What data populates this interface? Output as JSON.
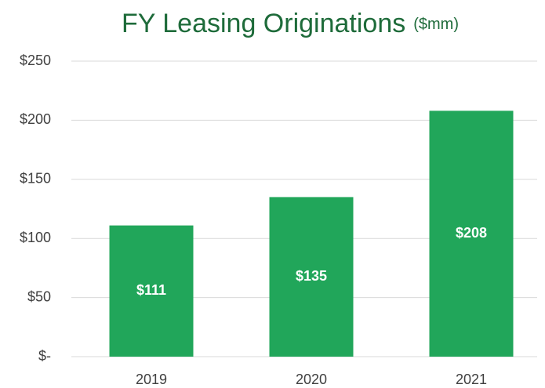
{
  "chart_data": {
    "type": "bar",
    "title": "FY Leasing Originations",
    "subtitle": "($mm)",
    "categories": [
      "2019",
      "2020",
      "2021"
    ],
    "values": [
      111,
      135,
      208
    ],
    "value_labels": [
      "$111",
      "$135",
      "$208"
    ],
    "color": "#21a65a",
    "ylim": [
      0,
      250
    ],
    "yticks": [
      {
        "value": 0,
        "label": "$-"
      },
      {
        "value": 50,
        "label": "$50"
      },
      {
        "value": 100,
        "label": "$100"
      },
      {
        "value": 150,
        "label": "$150"
      },
      {
        "value": 200,
        "label": "$200"
      },
      {
        "value": 250,
        "label": "$250"
      }
    ],
    "grid": true
  }
}
